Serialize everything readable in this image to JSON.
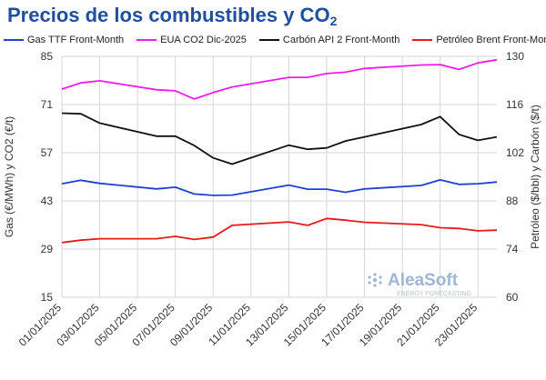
{
  "title": {
    "main": "Precios de los combustibles y CO",
    "sub": "2"
  },
  "watermark": {
    "brand": "AleaSoft",
    "tagline": "ENERGY FORECASTING"
  },
  "chart_data": {
    "type": "line",
    "x": [
      "01/01/2025",
      "02/01/2025",
      "03/01/2025",
      "06/01/2025",
      "07/01/2025",
      "08/01/2025",
      "09/01/2025",
      "10/01/2025",
      "13/01/2025",
      "14/01/2025",
      "15/01/2025",
      "16/01/2025",
      "17/01/2025",
      "20/01/2025",
      "21/01/2025",
      "22/01/2025",
      "23/01/2025",
      "24/01/2025"
    ],
    "x_tick_labels": [
      "01/01/2025",
      "03/01/2025",
      "05/01/2025",
      "07/01/2025",
      "09/01/2025",
      "11/01/2025",
      "13/01/2025",
      "15/01/2025",
      "17/01/2025",
      "19/01/2025",
      "21/01/2025",
      "23/01/2025"
    ],
    "xlim": [
      "01/01/2025",
      "24/01/2025"
    ],
    "y_left": {
      "label": "Gas (€/MWh) y CO2 (€/t)",
      "range": [
        15,
        85
      ],
      "ticks": [
        15,
        29,
        43,
        57,
        71,
        85
      ]
    },
    "y_right": {
      "label": "Petróleo ($/bbl) y Carbón ($/t)",
      "range": [
        60,
        130
      ],
      "ticks": [
        60,
        74,
        88,
        102,
        116,
        130
      ]
    },
    "grid": true,
    "legend_position": "top",
    "series": [
      {
        "name": "Gas TTF Front-Month",
        "axis": "left",
        "color": "#1f3fd6",
        "values": [
          48.0,
          49.0,
          48.1,
          46.5,
          47.0,
          45.0,
          44.6,
          44.7,
          47.6,
          46.4,
          46.4,
          45.5,
          46.5,
          47.5,
          49.1,
          47.8,
          48.0,
          48.5
        ]
      },
      {
        "name": "EUA CO2 Dic-2025",
        "axis": "left",
        "color": "#ee1bee",
        "values": [
          75.5,
          77.3,
          77.9,
          75.3,
          75.0,
          72.6,
          74.5,
          76.1,
          78.9,
          78.9,
          80.0,
          80.4,
          81.5,
          82.5,
          82.6,
          81.2,
          83.1,
          84.0
        ]
      },
      {
        "name": "Carbón API 2 Front-Month",
        "axis": "right",
        "color": "#111111",
        "values": [
          113.5,
          113.3,
          110.6,
          106.8,
          106.8,
          104.1,
          100.5,
          98.7,
          104.2,
          103.0,
          103.4,
          105.4,
          106.6,
          110.2,
          112.5,
          107.3,
          105.6,
          106.6
        ]
      },
      {
        "name": "Petróleo Brent Front-Month",
        "axis": "right",
        "color": "#e8191a",
        "values": [
          75.9,
          76.6,
          77.0,
          77.0,
          77.7,
          76.8,
          77.5,
          80.9,
          81.9,
          80.9,
          82.9,
          82.4,
          81.8,
          81.1,
          80.2,
          80.0,
          79.3,
          79.5
        ]
      }
    ]
  }
}
